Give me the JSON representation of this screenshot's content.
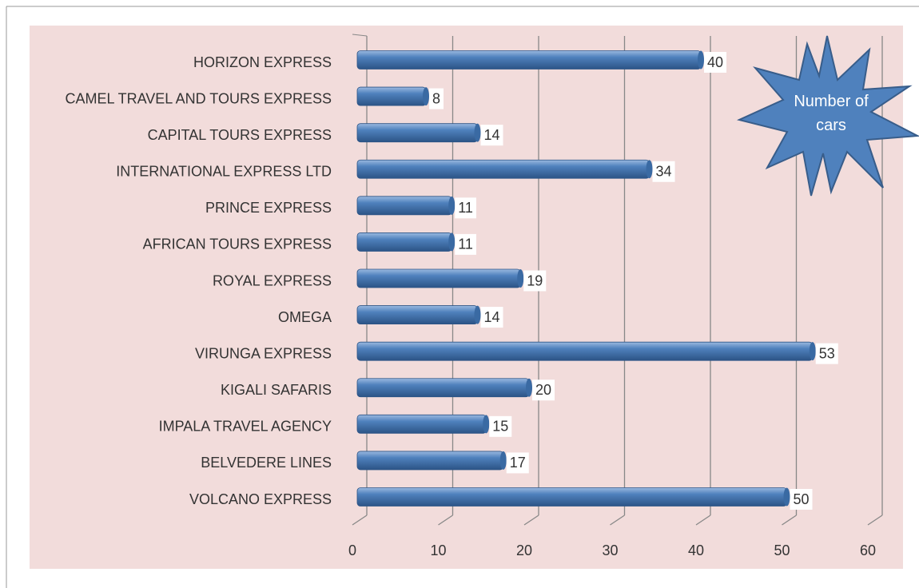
{
  "chart_data": {
    "type": "bar",
    "orientation": "horizontal",
    "annotation": "Number of cars",
    "categories": [
      "HORIZON EXPRESS",
      "CAMEL TRAVEL AND TOURS EXPRESS",
      "CAPITAL TOURS EXPRESS",
      "INTERNATIONAL EXPRESS LTD",
      "PRINCE EXPRESS",
      "AFRICAN TOURS EXPRESS",
      "ROYAL EXPRESS",
      "OMEGA",
      "VIRUNGA EXPRESS",
      "KIGALI SAFARIS",
      "IMPALA TRAVEL AGENCY",
      "BELVEDERE LINES",
      "VOLCANO EXPRESS"
    ],
    "values": [
      40,
      8,
      14,
      34,
      11,
      11,
      19,
      14,
      53,
      20,
      15,
      17,
      50
    ],
    "color": "#4f81bd",
    "xlim": [
      0,
      60
    ],
    "xticks": [
      0,
      10,
      20,
      30,
      40,
      50,
      60
    ],
    "grid": true
  }
}
